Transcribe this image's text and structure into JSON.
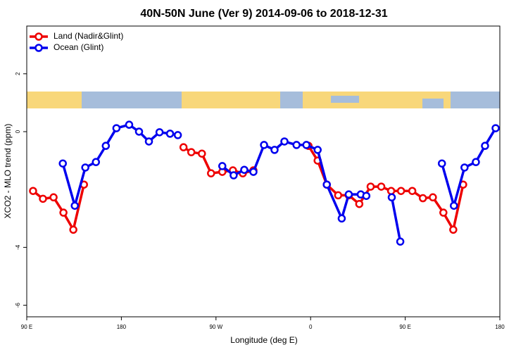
{
  "chart_data": {
    "type": "line",
    "title": "40N-50N June (Ver 9)   2014-09-06 to 2018-12-31",
    "xlabel": "Longitude (deg E)",
    "ylabel": "XCO2 - MLO trend (ppm)",
    "xlim": [
      90,
      540
    ],
    "xticks": [
      {
        "value": 90,
        "label": "90 E"
      },
      {
        "value": 180,
        "label": "180"
      },
      {
        "value": 270,
        "label": "90 W"
      },
      {
        "value": 360,
        "label": "0"
      },
      {
        "value": 450,
        "label": "90 E"
      },
      {
        "value": 540,
        "label": "180"
      }
    ],
    "ylim": [
      -6.4,
      3.65
    ],
    "yticks": [
      -6,
      -4,
      0,
      2
    ],
    "legend": "top-left",
    "series": [
      {
        "name": "Land (Nadir&Glint)",
        "color": "#ee0000",
        "x": [
          96.0,
          105.4,
          115.5,
          124.9,
          134.3,
          144.4,
          null,
          239.1,
          246.5,
          256.6,
          265.3,
          276.0,
          286.1,
          295.5,
          305.6,
          null,
          358.0,
          366.7,
          375.4,
          386.2,
          396.3,
          406.3,
          417.1,
          427.2,
          436.6,
          446.0,
          456.7,
          466.8,
          476.3,
          486.3,
          495.7,
          505.1
        ],
        "values": [
          -2.05,
          -2.32,
          -2.27,
          -2.8,
          -3.39,
          -1.83,
          null,
          -0.54,
          -0.71,
          -0.76,
          -1.44,
          -1.39,
          -1.34,
          -1.44,
          -1.34,
          null,
          -0.49,
          -1.0,
          -1.83,
          -2.2,
          -2.2,
          -2.5,
          -1.9,
          -1.9,
          -2.05,
          -2.05,
          -2.05,
          -2.3,
          -2.27,
          -2.8,
          -3.39,
          -1.83
        ]
      },
      {
        "name": "Ocean (Glint)",
        "color": "#0000ee",
        "x": [
          124.3,
          135.7,
          145.7,
          155.8,
          165.2,
          175.3,
          187.4,
          196.8,
          206.2,
          216.3,
          226.3,
          233.7,
          null,
          276.0,
          286.8,
          296.9,
          305.6,
          315.7,
          325.7,
          335.1,
          346.6,
          356.0,
          366.7,
          375.4,
          389.6,
          396.3,
          407.7,
          413.0,
          null,
          437.2,
          445.3,
          null,
          484.9,
          496.3,
          506.4,
          517.2,
          525.9,
          536.0
        ],
        "values": [
          -1.1,
          -2.56,
          -1.24,
          -1.05,
          -0.49,
          0.12,
          0.24,
          0.0,
          -0.34,
          -0.02,
          -0.07,
          -0.12,
          null,
          -1.19,
          -1.51,
          -1.32,
          -1.39,
          -0.46,
          -0.63,
          -0.34,
          -0.46,
          -0.46,
          -0.63,
          -1.83,
          -3.0,
          -2.17,
          -2.17,
          -2.22,
          null,
          -2.27,
          -3.8,
          null,
          -1.1,
          -2.56,
          -1.24,
          -1.05,
          -0.49,
          0.12
        ]
      }
    ]
  }
}
